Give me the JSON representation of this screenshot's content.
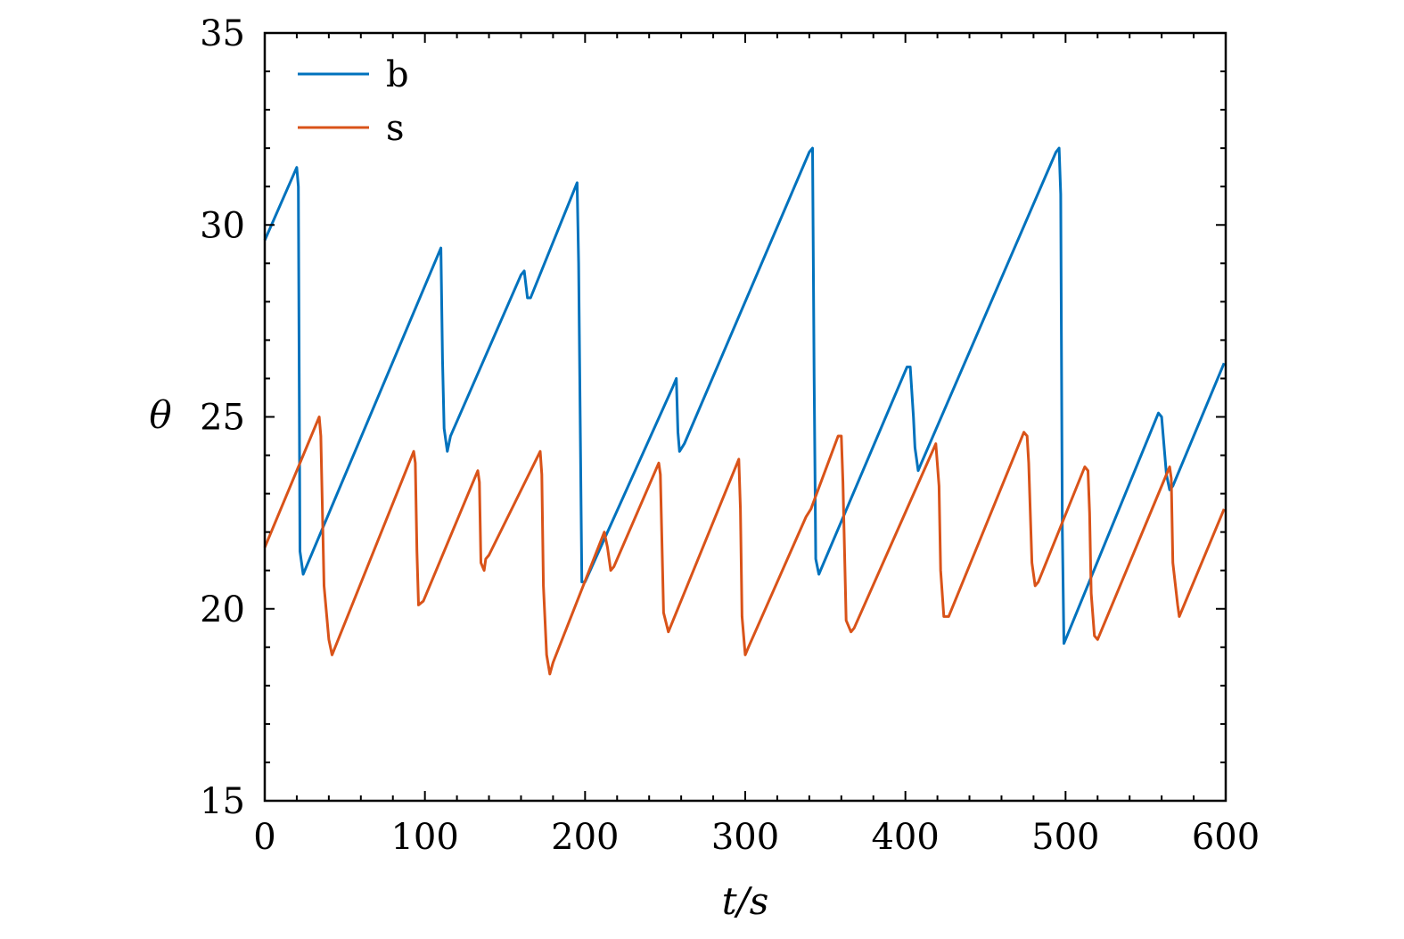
{
  "chart_data": {
    "type": "line",
    "title": "",
    "xlabel": "t/s",
    "ylabel": "θ",
    "xlim": [
      0,
      600
    ],
    "ylim": [
      15,
      35
    ],
    "xticks": [
      0,
      100,
      200,
      300,
      400,
      500,
      600
    ],
    "yticks": [
      15,
      20,
      25,
      30,
      35
    ],
    "grid": false,
    "legend": "top-left",
    "series": [
      {
        "name": "b",
        "color": "#0072BD",
        "points": [
          [
            0,
            29.6
          ],
          [
            20,
            31.5
          ],
          [
            21,
            31.0
          ],
          [
            22,
            21.5
          ],
          [
            24,
            20.9
          ],
          [
            110,
            29.4
          ],
          [
            111,
            26.5
          ],
          [
            112,
            24.7
          ],
          [
            114,
            24.1
          ],
          [
            116,
            24.5
          ],
          [
            160,
            28.7
          ],
          [
            162,
            28.8
          ],
          [
            164,
            28.1
          ],
          [
            166,
            28.1
          ],
          [
            195,
            31.1
          ],
          [
            196,
            29.0
          ],
          [
            198,
            20.7
          ],
          [
            200,
            20.7
          ],
          [
            255,
            25.8
          ],
          [
            257,
            26.0
          ],
          [
            258,
            24.6
          ],
          [
            259,
            24.1
          ],
          [
            262,
            24.3
          ],
          [
            340,
            31.9
          ],
          [
            342,
            32.0
          ],
          [
            343,
            26.0
          ],
          [
            344,
            21.3
          ],
          [
            346,
            20.9
          ],
          [
            401,
            26.3
          ],
          [
            403,
            26.3
          ],
          [
            405,
            25.0
          ],
          [
            406,
            24.2
          ],
          [
            408,
            23.6
          ],
          [
            410,
            23.8
          ],
          [
            494,
            31.9
          ],
          [
            496,
            32.0
          ],
          [
            497,
            30.8
          ],
          [
            498,
            22.1
          ],
          [
            499,
            19.1
          ],
          [
            501,
            19.3
          ],
          [
            558,
            25.1
          ],
          [
            560,
            25.0
          ],
          [
            562,
            24.0
          ],
          [
            563,
            23.5
          ],
          [
            565,
            23.1
          ],
          [
            567,
            23.2
          ],
          [
            599,
            26.4
          ]
        ]
      },
      {
        "name": "s",
        "color": "#D95319",
        "points": [
          [
            0,
            21.6
          ],
          [
            34,
            25.0
          ],
          [
            35,
            24.5
          ],
          [
            37,
            20.6
          ],
          [
            40,
            19.2
          ],
          [
            42,
            18.8
          ],
          [
            93,
            24.1
          ],
          [
            94,
            23.8
          ],
          [
            95,
            21.5
          ],
          [
            96,
            20.1
          ],
          [
            99,
            20.2
          ],
          [
            133,
            23.6
          ],
          [
            134,
            23.3
          ],
          [
            135,
            21.2
          ],
          [
            137,
            21.0
          ],
          [
            138,
            21.3
          ],
          [
            140,
            21.4
          ],
          [
            172,
            24.1
          ],
          [
            173,
            23.5
          ],
          [
            174,
            20.6
          ],
          [
            176,
            18.8
          ],
          [
            178,
            18.3
          ],
          [
            180,
            18.6
          ],
          [
            212,
            22.0
          ],
          [
            214,
            21.6
          ],
          [
            216,
            21.0
          ],
          [
            218,
            21.1
          ],
          [
            246,
            23.8
          ],
          [
            247,
            23.5
          ],
          [
            249,
            19.9
          ],
          [
            252,
            19.4
          ],
          [
            296,
            23.9
          ],
          [
            297,
            22.6
          ],
          [
            298,
            19.8
          ],
          [
            300,
            18.8
          ],
          [
            302,
            19.0
          ],
          [
            338,
            22.4
          ],
          [
            341,
            22.6
          ],
          [
            358,
            24.5
          ],
          [
            360,
            24.5
          ],
          [
            361,
            23.3
          ],
          [
            363,
            19.7
          ],
          [
            366,
            19.4
          ],
          [
            368,
            19.5
          ],
          [
            419,
            24.3
          ],
          [
            421,
            23.2
          ],
          [
            422,
            21.0
          ],
          [
            424,
            19.8
          ],
          [
            427,
            19.8
          ],
          [
            474,
            24.6
          ],
          [
            476,
            24.5
          ],
          [
            477,
            23.8
          ],
          [
            479,
            21.2
          ],
          [
            481,
            20.6
          ],
          [
            483,
            20.7
          ],
          [
            512,
            23.7
          ],
          [
            514,
            23.6
          ],
          [
            515,
            22.5
          ],
          [
            516,
            20.4
          ],
          [
            518,
            19.3
          ],
          [
            520,
            19.2
          ],
          [
            522,
            19.4
          ],
          [
            565,
            23.7
          ],
          [
            566,
            23.4
          ],
          [
            567,
            21.2
          ],
          [
            570,
            20.1
          ],
          [
            571,
            19.8
          ],
          [
            573,
            20.0
          ],
          [
            599,
            22.6
          ]
        ]
      }
    ]
  }
}
